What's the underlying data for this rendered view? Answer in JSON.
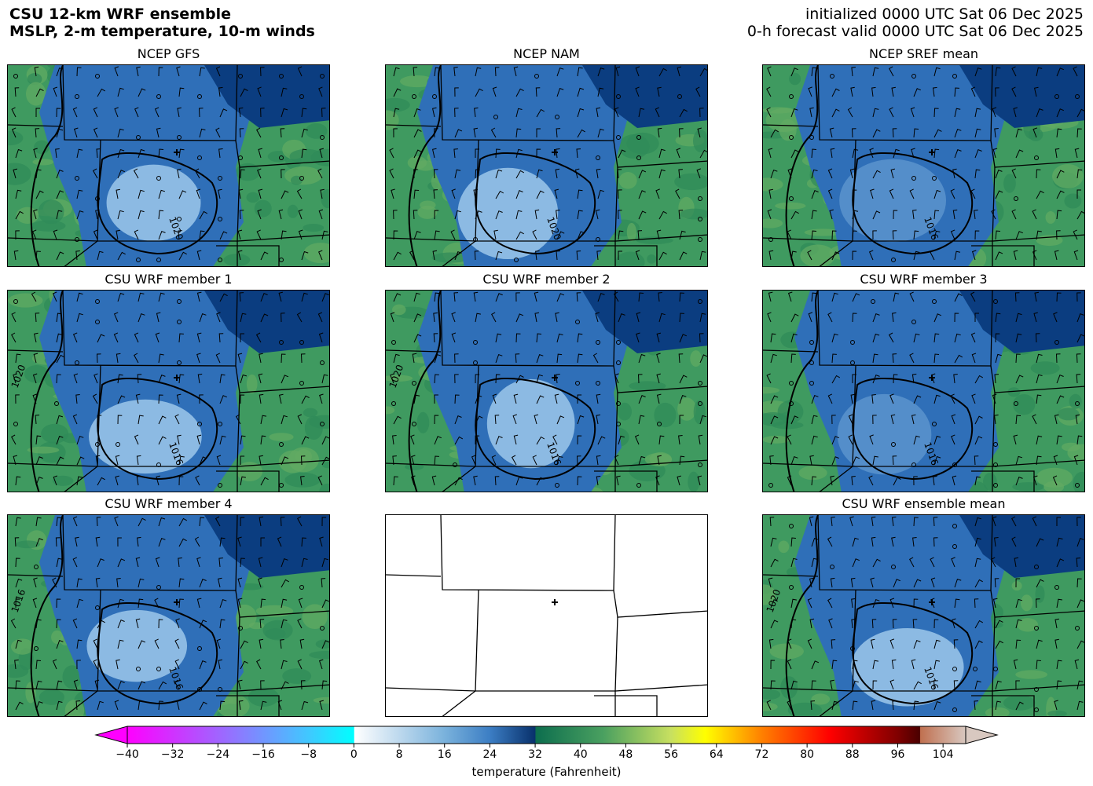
{
  "header": {
    "title_line1": "CSU 12-km WRF ensemble",
    "title_line2": "MSLP, 2-m temperature, 10-m winds",
    "init_text": "initialized 0000 UTC Sat 06 Dec 2025",
    "valid_text": "0-h forecast valid 0000 UTC Sat 06 Dec 2025"
  },
  "panels": [
    {
      "title": "NCEP GFS",
      "isobar_labels": [
        "1020"
      ],
      "has_data": true
    },
    {
      "title": "NCEP NAM",
      "isobar_labels": [
        "1020"
      ],
      "has_data": true
    },
    {
      "title": "NCEP SREF mean",
      "isobar_labels": [
        "1016"
      ],
      "has_data": true
    },
    {
      "title": "CSU WRF member 1",
      "isobar_labels": [
        "1016",
        "1020"
      ],
      "has_data": true
    },
    {
      "title": "CSU WRF member 2",
      "isobar_labels": [
        "1016",
        "1020"
      ],
      "has_data": true
    },
    {
      "title": "CSU WRF member 3",
      "isobar_labels": [
        "1016"
      ],
      "has_data": true
    },
    {
      "title": "CSU WRF member 4",
      "isobar_labels": [
        "1016",
        "1016"
      ],
      "has_data": true
    },
    {
      "title": "",
      "isobar_labels": [],
      "has_data": false
    },
    {
      "title": "CSU WRF ensemble mean",
      "isobar_labels": [
        "1016",
        "1020"
      ],
      "has_data": true
    }
  ],
  "colorbar": {
    "label": "temperature (Fahrenheit)",
    "min": -40,
    "max": 108,
    "ticks": [
      "−40",
      "−32",
      "−24",
      "−16",
      "−8",
      "0",
      "8",
      "16",
      "24",
      "32",
      "40",
      "48",
      "56",
      "64",
      "72",
      "80",
      "88",
      "96",
      "104"
    ],
    "tick_values": [
      -40,
      -32,
      -24,
      -16,
      -8,
      0,
      8,
      16,
      24,
      32,
      40,
      48,
      56,
      64,
      72,
      80,
      88,
      96,
      104
    ],
    "under_color": "#ff00ff",
    "over_color": "#d8c8c0",
    "stops": [
      {
        "v": -40,
        "c": "#ff00ff"
      },
      {
        "v": -20,
        "c": "#8a7cff"
      },
      {
        "v": -8,
        "c": "#40c8ff"
      },
      {
        "v": 0,
        "c": "#00ffff"
      },
      {
        "v": 0.1,
        "c": "#ffffff"
      },
      {
        "v": 16,
        "c": "#7ab2dc"
      },
      {
        "v": 24,
        "c": "#3c7ec4"
      },
      {
        "v": 32,
        "c": "#08306b"
      },
      {
        "v": 32.1,
        "c": "#0d6e4e"
      },
      {
        "v": 44,
        "c": "#4aa060"
      },
      {
        "v": 56,
        "c": "#c8e060"
      },
      {
        "v": 62,
        "c": "#ffff00"
      },
      {
        "v": 72,
        "c": "#ff8000"
      },
      {
        "v": 84,
        "c": "#ff0000"
      },
      {
        "v": 96,
        "c": "#800000"
      },
      {
        "v": 99.9,
        "c": "#4a0000"
      },
      {
        "v": 100,
        "c": "#c07050"
      },
      {
        "v": 108,
        "c": "#d8c8c0"
      }
    ]
  },
  "colors": {
    "cold": "#0b3d80",
    "cool": "#2f6fb8",
    "chill": "#9cc8ea",
    "warm": "#3f9a60",
    "mild": "#62ab62"
  }
}
